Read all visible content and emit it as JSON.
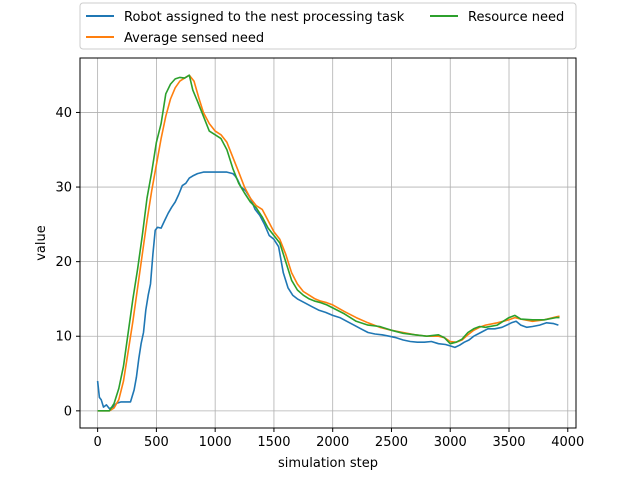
{
  "chart_data": {
    "type": "line",
    "title": "",
    "xlabel": "simulation step",
    "ylabel": "value",
    "xlim": [
      -150,
      4070
    ],
    "ylim": [
      -2.3,
      47.3
    ],
    "xticks": [
      0,
      500,
      1000,
      1500,
      2000,
      2500,
      3000,
      3500,
      4000
    ],
    "xtick_labels": [
      "0",
      "500",
      "1000",
      "1500",
      "2000",
      "2500",
      "3000",
      "3500",
      "4000"
    ],
    "yticks": [
      0,
      10,
      20,
      30,
      40
    ],
    "ytick_labels": [
      "0",
      "10",
      "20",
      "30",
      "40"
    ],
    "grid": true,
    "legend": {
      "placement": "above-plot",
      "columns": 2,
      "entries": [
        "Robot assigned to the nest processing task",
        "Average sensed need",
        "Resource need"
      ]
    },
    "series": [
      {
        "name": "Robot assigned to the nest processing task",
        "color": "#1f77b4",
        "x": [
          0,
          15,
          30,
          50,
          75,
          100,
          130,
          160,
          200,
          240,
          280,
          310,
          330,
          350,
          370,
          390,
          410,
          430,
          450,
          470,
          490,
          510,
          540,
          570,
          600,
          630,
          660,
          690,
          720,
          750,
          780,
          810,
          850,
          900,
          950,
          1000,
          1050,
          1100,
          1150,
          1170,
          1190,
          1220,
          1260,
          1300,
          1340,
          1380,
          1420,
          1460,
          1500,
          1540,
          1580,
          1620,
          1660,
          1700,
          1760,
          1820,
          1880,
          1940,
          2000,
          2060,
          2120,
          2180,
          2240,
          2300,
          2360,
          2420,
          2480,
          2540,
          2600,
          2660,
          2720,
          2780,
          2840,
          2900,
          2960,
          3000,
          3040,
          3080,
          3120,
          3160,
          3200,
          3260,
          3320,
          3380,
          3440,
          3480,
          3520,
          3560,
          3600,
          3650,
          3700,
          3760,
          3820,
          3880,
          3920
        ],
        "values": [
          4,
          1.8,
          1.5,
          0.5,
          0.8,
          0.3,
          0.5,
          1.0,
          1.2,
          1.2,
          1.2,
          2.8,
          4.5,
          7,
          9,
          10.5,
          13.5,
          15.5,
          17,
          21,
          24.2,
          24.6,
          24.5,
          25.5,
          26.5,
          27.3,
          28,
          29,
          30.2,
          30.5,
          31.2,
          31.5,
          31.8,
          32,
          32,
          32,
          32,
          32,
          31.8,
          31.5,
          31,
          30,
          29.5,
          28.5,
          27,
          26.2,
          25,
          23.5,
          23,
          22,
          18.5,
          16.5,
          15.5,
          15,
          14.5,
          14,
          13.5,
          13.2,
          12.8,
          12.5,
          12,
          11.5,
          11,
          10.5,
          10.3,
          10.2,
          10,
          9.8,
          9.5,
          9.3,
          9.2,
          9.2,
          9.3,
          9,
          8.9,
          8.7,
          8.5,
          8.8,
          9.2,
          9.5,
          10,
          10.5,
          11,
          11,
          11.2,
          11.5,
          11.8,
          12,
          11.5,
          11.2,
          11.3,
          11.5,
          11.8,
          11.7,
          11.5
        ]
      },
      {
        "name": "Average sensed need",
        "color": "#ff7f0e",
        "x": [
          0,
          50,
          100,
          140,
          180,
          220,
          260,
          300,
          340,
          380,
          420,
          460,
          500,
          540,
          580,
          620,
          660,
          700,
          740,
          780,
          820,
          860,
          900,
          950,
          1000,
          1050,
          1100,
          1150,
          1200,
          1250,
          1300,
          1350,
          1400,
          1450,
          1500,
          1550,
          1600,
          1650,
          1700,
          1750,
          1800,
          1850,
          1900,
          1950,
          2000,
          2100,
          2200,
          2300,
          2400,
          2500,
          2600,
          2700,
          2800,
          2900,
          2950,
          3000,
          3050,
          3100,
          3150,
          3200,
          3250,
          3300,
          3400,
          3500,
          3550,
          3600,
          3700,
          3800,
          3900,
          3930
        ],
        "values": [
          0,
          0,
          0,
          0.4,
          1.5,
          4,
          8,
          12,
          16.5,
          21,
          25.5,
          29.5,
          33,
          36.5,
          39.5,
          41.8,
          43.3,
          44.2,
          44.6,
          45,
          44.2,
          42,
          40,
          38.5,
          37.5,
          37,
          36,
          34,
          32,
          30,
          28.5,
          27.5,
          27,
          25.5,
          24,
          23,
          21,
          18.5,
          17,
          16,
          15.5,
          15,
          14.7,
          14.5,
          14.2,
          13.3,
          12.5,
          11.8,
          11.2,
          10.8,
          10.5,
          10.2,
          10,
          10,
          9.8,
          9.3,
          9.2,
          9.5,
          10.2,
          10.8,
          11.2,
          11.5,
          11.8,
          12.2,
          12.5,
          12.3,
          12,
          12.2,
          12.6,
          12.7
        ]
      },
      {
        "name": "Resource need",
        "color": "#2ca02c",
        "x": [
          0,
          50,
          100,
          140,
          180,
          220,
          260,
          300,
          340,
          380,
          420,
          460,
          500,
          540,
          580,
          620,
          660,
          700,
          740,
          780,
          810,
          850,
          900,
          950,
          1000,
          1050,
          1100,
          1150,
          1200,
          1250,
          1300,
          1350,
          1400,
          1450,
          1500,
          1550,
          1600,
          1650,
          1700,
          1750,
          1800,
          1850,
          1900,
          1950,
          2000,
          2100,
          2200,
          2300,
          2400,
          2500,
          2600,
          2700,
          2800,
          2900,
          2950,
          3000,
          3050,
          3100,
          3150,
          3200,
          3250,
          3300,
          3400,
          3500,
          3550,
          3600,
          3700,
          3800,
          3900,
          3930
        ],
        "values": [
          0,
          0,
          0,
          1,
          3,
          6,
          10.5,
          15,
          19,
          23.5,
          28.5,
          32,
          36,
          38.5,
          42.5,
          43.8,
          44.5,
          44.7,
          44.6,
          45,
          43,
          41.5,
          39.5,
          37.5,
          37,
          36.5,
          35,
          32.5,
          30.5,
          29.2,
          28,
          27.2,
          26,
          24.5,
          23.5,
          22.5,
          20,
          17.5,
          16.2,
          15.5,
          15,
          14.7,
          14.5,
          14.2,
          13.8,
          13,
          12,
          11.5,
          11.3,
          10.8,
          10.4,
          10.2,
          10,
          10.2,
          9.8,
          9,
          9.2,
          9.6,
          10.5,
          11,
          11.3,
          11.2,
          11.5,
          12.5,
          12.8,
          12.3,
          12.2,
          12.2,
          12.5,
          12.5
        ]
      }
    ]
  }
}
